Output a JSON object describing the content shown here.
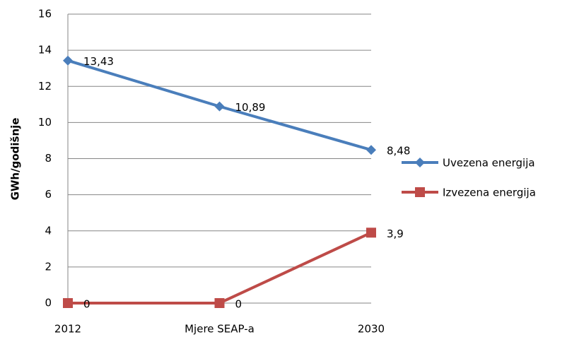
{
  "chart_data": {
    "type": "line",
    "y_label": "GWh/godišnje",
    "categories": [
      "2012",
      "Mjere SEAP-a",
      "2030"
    ],
    "series": [
      {
        "name": "Uvezena energija",
        "color": "#4a7ebb",
        "marker": "diamond",
        "values": [
          13.43,
          10.89,
          8.48
        ],
        "value_labels": [
          "13,43",
          "10,89",
          "8,48"
        ]
      },
      {
        "name": "Izvezena energija",
        "color": "#be4b48",
        "marker": "square",
        "values": [
          0,
          0,
          3.9
        ],
        "value_labels": [
          "0",
          "0",
          "3,9"
        ]
      }
    ],
    "ylim": [
      0,
      16
    ],
    "yticks": [
      0,
      2,
      4,
      6,
      8,
      10,
      12,
      14,
      16
    ],
    "grid": true,
    "legend": "right"
  }
}
